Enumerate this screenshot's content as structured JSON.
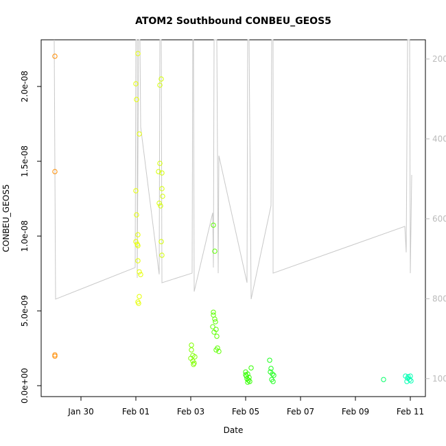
{
  "chart_data": {
    "type": "scatter",
    "title": "ATOM2 Southbound CONBEU_GEOS5",
    "x_label": "Date",
    "y_label": "CONBEU_GEOS5",
    "xlim": [
      -3.45,
      10.55
    ],
    "xticks": [
      {
        "value": -2,
        "label": "Jan 30"
      },
      {
        "value": 0,
        "label": "Feb 01"
      },
      {
        "value": 2,
        "label": "Feb 03"
      },
      {
        "value": 4,
        "label": "Feb 05"
      },
      {
        "value": 6,
        "label": "Feb 07"
      },
      {
        "value": 8,
        "label": "Feb 09"
      },
      {
        "value": 10,
        "label": "Feb 11"
      }
    ],
    "ylim": [
      -7.3e-10,
      2.312e-08
    ],
    "yticks": [
      {
        "value": 0,
        "label": "0.0e+00"
      },
      {
        "value": 5e-09,
        "label": "5.0e-09"
      },
      {
        "value": 1e-08,
        "label": "1.0e-08"
      },
      {
        "value": 1.5e-08,
        "label": "1.5e-08"
      },
      {
        "value": 2e-08,
        "label": "2.0e-08"
      }
    ],
    "y2lim": [
      1045,
      152
    ],
    "y2ticks": [
      200,
      400,
      600,
      800,
      1000
    ],
    "series": [
      {
        "type": "line",
        "axis": "y2",
        "color": "#c8c8c8",
        "x": [
          -2.975,
          -2.925,
          -0.025,
          0,
          0.05,
          0.05,
          0.1,
          0.15,
          0.175,
          0.85,
          0.875,
          0.925,
          0.95,
          2.05,
          2.075,
          2.1,
          2.125,
          2.8,
          2.825,
          2.85,
          2.95,
          3.0,
          3.025,
          4.05,
          4.075,
          4.125,
          4.2,
          4.925,
          4.95,
          5.0,
          5.0,
          9.8,
          9.85,
          9.9,
          9.975,
          10.0,
          10.05
        ],
        "values": [
          152,
          801,
          722,
          152,
          152,
          748,
          152,
          152,
          370,
          739,
          152,
          152,
          760,
          736,
          152,
          152,
          782,
          585,
          722,
          152,
          152,
          736,
          442,
          760,
          152,
          152,
          801,
          567,
          152,
          152,
          736,
          619,
          684,
          152,
          152,
          736,
          490
        ]
      },
      {
        "color": "#ff8c00",
        "x": [
          -2.95,
          -2.95,
          -2.95,
          -2.95
        ],
        "values": [
          2.202e-08,
          1.431e-08,
          2.06e-09,
          1.97e-09
        ]
      },
      {
        "color": "#e5ff00",
        "x": [
          0.075,
          0,
          0.025,
          0.125,
          0,
          0.025,
          0.075,
          0,
          0.05,
          0.075,
          0.075,
          0.125,
          0.175,
          0.125,
          0.075,
          0.1
        ],
        "values": [
          2.22e-08,
          2.018e-08,
          1.913e-08,
          1.683e-08,
          1.303e-08,
          1.142e-08,
          1.009e-08,
          9.63e-09,
          9.45e-09,
          9.36e-09,
          8.35e-09,
          7.61e-09,
          7.43e-09,
          5.96e-09,
          5.6e-09,
          5.5e-09
        ]
      },
      {
        "color": "#d4ff00",
        "x": [
          0.925,
          0.875,
          0.875,
          0.825,
          0.95,
          0.95,
          0.975,
          0.85,
          0.9,
          0.925,
          0.95
        ],
        "values": [
          2.05e-08,
          2.009e-08,
          1.486e-08,
          1.431e-08,
          1.422e-08,
          1.317e-08,
          1.266e-08,
          1.22e-08,
          1.202e-08,
          9.63e-09,
          8.72e-09
        ]
      },
      {
        "color": "#80ff00",
        "x": [
          2.025,
          2.025,
          2.075,
          2.15,
          2.0,
          2.075,
          2.125,
          2.1
        ],
        "values": [
          2.71e-09,
          2.39e-09,
          2.02e-09,
          1.93e-09,
          1.83e-09,
          1.65e-09,
          1.51e-09,
          1.42e-09
        ]
      },
      {
        "color": "#5cff00",
        "x": [
          2.825,
          2.875,
          2.825,
          2.825,
          2.875,
          2.9,
          2.8,
          2.925,
          2.85,
          2.95,
          2.975,
          2.925,
          3.025
        ],
        "values": [
          1.073e-08,
          8.99e-09,
          4.91e-09,
          4.72e-09,
          4.45e-09,
          4.27e-09,
          3.94e-09,
          3.76e-09,
          3.58e-09,
          3.3e-09,
          2.52e-09,
          2.39e-09,
          2.29e-09
        ]
      },
      {
        "color": "#33ff00",
        "x": [
          4,
          4.075,
          4.025,
          4.125,
          4.05,
          4.1,
          4.15,
          4.075,
          4.2,
          4
        ],
        "values": [
          9.17e-10,
          7.8e-10,
          6.4e-10,
          5.5e-10,
          4.6e-10,
          3.7e-10,
          2.8e-10,
          2.3e-10,
          1.19e-09,
          7.3e-10
        ]
      },
      {
        "color": "#1aff1a",
        "x": [
          4.875,
          4.925,
          4.9,
          4.975,
          5.025,
          4.95,
          5
        ],
        "values": [
          1.7e-09,
          1.15e-09,
          9.2e-10,
          7.8e-10,
          6.9e-10,
          4.1e-10,
          2.8e-10
        ]
      },
      {
        "color": "#00ff66",
        "x": [
          9.025
        ],
        "values": [
          4.1e-10
        ]
      },
      {
        "color": "#00ffb3",
        "x": [
          9.825,
          9.925,
          9.9,
          9.975,
          10.025,
          9.875,
          10
        ],
        "values": [
          6.4e-10,
          6e-10,
          5e-10,
          4.1e-10,
          3.2e-10,
          2.8e-10,
          6.4e-10
        ]
      }
    ]
  }
}
